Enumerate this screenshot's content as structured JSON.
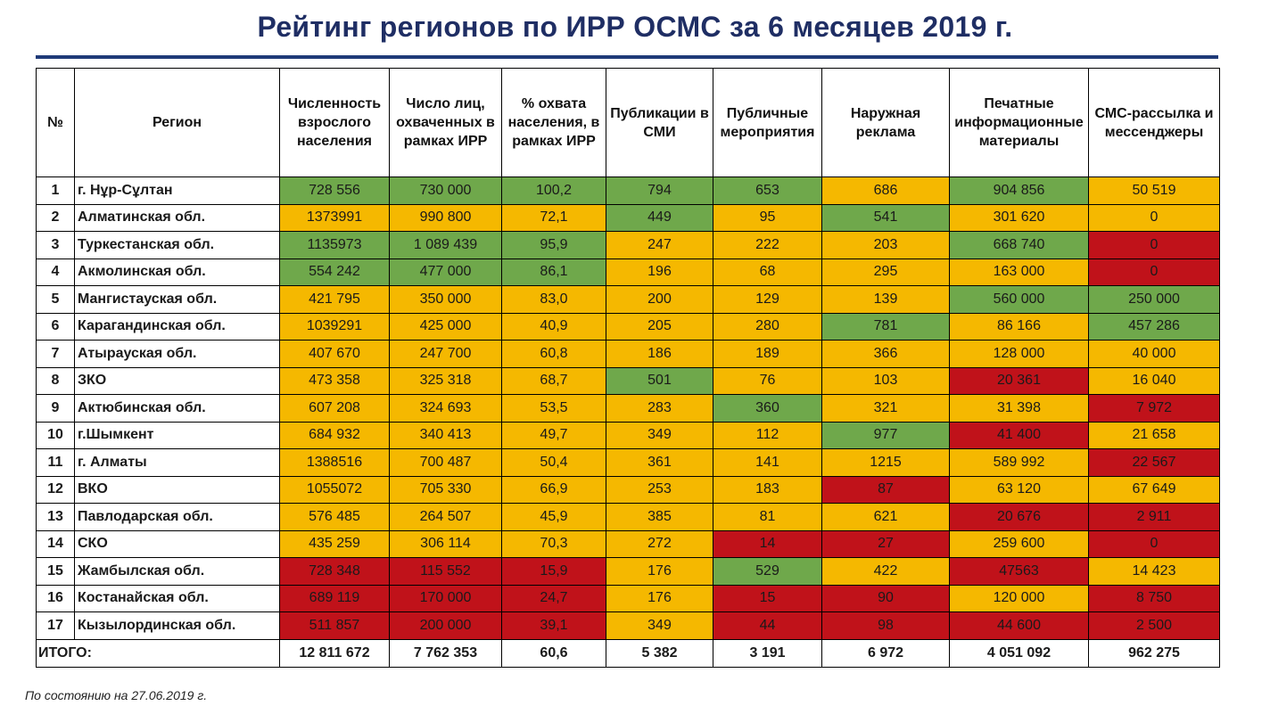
{
  "title": "Рейтинг регионов по ИРР ОСМС за 6 месяцев 2019 г.",
  "colors": {
    "green": "#6fa84b",
    "yellow": "#f5b800",
    "red": "#c0121a",
    "title": "#1f2e64"
  },
  "headers": [
    "№",
    "Регион",
    "Численность взрослого населения",
    "Число лиц, охваченных в рамках ИРР",
    "% охвата населения, в рамках ИРР",
    "Публикации в СМИ",
    "Публичные мероприятия",
    "Наружная реклама",
    "Печатные информационные материалы",
    "СМС-рассылка и мессенджеры"
  ],
  "rows": [
    {
      "num": "1",
      "region": "г. Нұр-Сұлтан",
      "values": [
        "728 556",
        "730 000",
        "100,2",
        "794",
        "653",
        "686",
        "904 856",
        "50 519"
      ],
      "status": [
        "green",
        "green",
        "green",
        "green",
        "green",
        "yellow",
        "green",
        "yellow"
      ]
    },
    {
      "num": "2",
      "region": "Алматинская обл.",
      "values": [
        "1373991",
        "990 800",
        "72,1",
        "449",
        "95",
        "541",
        "301 620",
        "0"
      ],
      "status": [
        "yellow",
        "yellow",
        "yellow",
        "green",
        "yellow",
        "green",
        "yellow",
        "yellow"
      ]
    },
    {
      "num": "3",
      "region": "Туркестанская обл.",
      "values": [
        "1135973",
        "1 089 439",
        "95,9",
        "247",
        "222",
        "203",
        "668 740",
        "0"
      ],
      "status": [
        "green",
        "green",
        "green",
        "yellow",
        "yellow",
        "yellow",
        "green",
        "red"
      ]
    },
    {
      "num": "4",
      "region": "Акмолинская обл.",
      "values": [
        "554 242",
        "477 000",
        "86,1",
        "196",
        "68",
        "295",
        "163 000",
        "0"
      ],
      "status": [
        "green",
        "green",
        "green",
        "yellow",
        "yellow",
        "yellow",
        "yellow",
        "red"
      ]
    },
    {
      "num": "5",
      "region": "Мангистауская обл.",
      "values": [
        "421 795",
        "350 000",
        "83,0",
        "200",
        "129",
        "139",
        "560 000",
        "250 000"
      ],
      "status": [
        "yellow",
        "yellow",
        "yellow",
        "yellow",
        "yellow",
        "yellow",
        "green",
        "green"
      ]
    },
    {
      "num": "6",
      "region": "Карагандинская обл.",
      "values": [
        "1039291",
        "425 000",
        "40,9",
        "205",
        "280",
        "781",
        "86 166",
        "457 286"
      ],
      "status": [
        "yellow",
        "yellow",
        "yellow",
        "yellow",
        "yellow",
        "green",
        "yellow",
        "green"
      ]
    },
    {
      "num": "7",
      "region": "Атырауская обл.",
      "values": [
        "407 670",
        "247 700",
        "60,8",
        "186",
        "189",
        "366",
        "128 000",
        "40 000"
      ],
      "status": [
        "yellow",
        "yellow",
        "yellow",
        "yellow",
        "yellow",
        "yellow",
        "yellow",
        "yellow"
      ]
    },
    {
      "num": "8",
      "region": "ЗКО",
      "values": [
        "473 358",
        "325 318",
        "68,7",
        "501",
        "76",
        "103",
        "20 361",
        "16 040"
      ],
      "status": [
        "yellow",
        "yellow",
        "yellow",
        "green",
        "yellow",
        "yellow",
        "red",
        "yellow"
      ]
    },
    {
      "num": "9",
      "region": "Актюбинская обл.",
      "values": [
        "607 208",
        "324 693",
        "53,5",
        "283",
        "360",
        "321",
        "31 398",
        "7 972"
      ],
      "status": [
        "yellow",
        "yellow",
        "yellow",
        "yellow",
        "green",
        "yellow",
        "yellow",
        "red"
      ]
    },
    {
      "num": "10",
      "region": "г.Шымкент",
      "values": [
        "684 932",
        "340 413",
        "49,7",
        "349",
        "112",
        "977",
        "41 400",
        "21 658"
      ],
      "status": [
        "yellow",
        "yellow",
        "yellow",
        "yellow",
        "yellow",
        "green",
        "red",
        "yellow"
      ]
    },
    {
      "num": "11",
      "region": "г. Алматы",
      "values": [
        "1388516",
        "700 487",
        "50,4",
        "361",
        "141",
        "1215",
        "589 992",
        "22 567"
      ],
      "status": [
        "yellow",
        "yellow",
        "yellow",
        "yellow",
        "yellow",
        "yellow",
        "yellow",
        "red"
      ]
    },
    {
      "num": "12",
      "region": "ВКО",
      "values": [
        "1055072",
        "705 330",
        "66,9",
        "253",
        "183",
        "87",
        "63 120",
        "67 649"
      ],
      "status": [
        "yellow",
        "yellow",
        "yellow",
        "yellow",
        "yellow",
        "red",
        "yellow",
        "yellow"
      ]
    },
    {
      "num": "13",
      "region": "Павлодарская обл.",
      "values": [
        "576 485",
        "264 507",
        "45,9",
        "385",
        "81",
        "621",
        "20 676",
        "2 911"
      ],
      "status": [
        "yellow",
        "yellow",
        "yellow",
        "yellow",
        "yellow",
        "yellow",
        "red",
        "red"
      ]
    },
    {
      "num": "14",
      "region": "СКО",
      "values": [
        "435 259",
        "306 114",
        "70,3",
        "272",
        "14",
        "27",
        "259 600",
        "0"
      ],
      "status": [
        "yellow",
        "yellow",
        "yellow",
        "yellow",
        "red",
        "red",
        "yellow",
        "red"
      ]
    },
    {
      "num": "15",
      "region": "Жамбылская обл.",
      "values": [
        "728 348",
        "115 552",
        "15,9",
        "176",
        "529",
        "422",
        "47563",
        "14 423"
      ],
      "status": [
        "red",
        "red",
        "red",
        "yellow",
        "green",
        "yellow",
        "red",
        "yellow"
      ]
    },
    {
      "num": "16",
      "region": "Костанайская обл.",
      "values": [
        "689 119",
        "170 000",
        "24,7",
        "176",
        "15",
        "90",
        "120 000",
        "8 750"
      ],
      "status": [
        "red",
        "red",
        "red",
        "yellow",
        "red",
        "red",
        "yellow",
        "red"
      ]
    },
    {
      "num": "17",
      "region": "Кызылординская обл.",
      "values": [
        "511 857",
        "200 000",
        "39,1",
        "349",
        "44",
        "98",
        "44 600",
        "2 500"
      ],
      "status": [
        "red",
        "red",
        "red",
        "yellow",
        "red",
        "red",
        "red",
        "red"
      ]
    }
  ],
  "total": {
    "label": "ИТОГО:",
    "values": [
      "12 811 672",
      "7 762 353",
      "60,6",
      "5 382",
      "3 191",
      "6 972",
      "4 051 092",
      "962 275"
    ]
  },
  "footnote": "По состоянию на 27.06.2019 г."
}
